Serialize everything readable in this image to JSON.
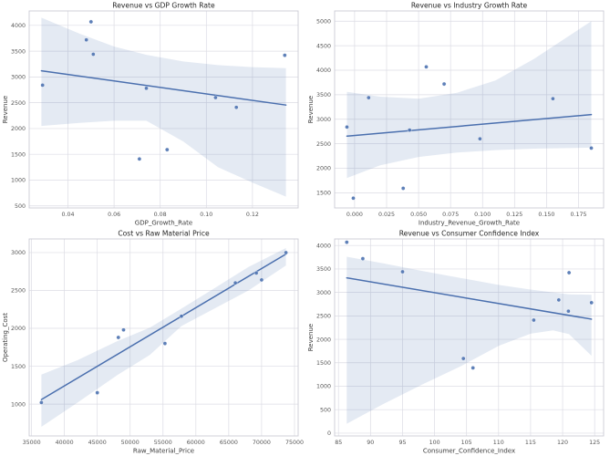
{
  "figure": {
    "background": "#ffffff"
  },
  "style": {
    "accent": "#4c72b0",
    "point_color": "#4c72b0",
    "line_color": "#4a6fae",
    "band_color": "rgba(76,114,176,0.15)",
    "grid_color": "#dcdce4",
    "spine_color": "#cbcbd4",
    "title_color": "#262626",
    "tick_color": "#555555",
    "axis_label_color": "#3c3c3c"
  },
  "chart_data": [
    {
      "type": "scatter",
      "title": "Revenue vs GDP Growth Rate",
      "xlabel": "GDP_Growth_Rate",
      "ylabel": "Revenue",
      "xlim": [
        0.0232,
        0.1398
      ],
      "ylim": [
        460,
        4280
      ],
      "xtick_labels": [
        "0.04",
        "0.06",
        "0.08",
        "0.10",
        "0.12"
      ],
      "ytick_labels": [
        "500",
        "1000",
        "1500",
        "2000",
        "2500",
        "3000",
        "3500",
        "4000"
      ],
      "grid": true,
      "legend": null,
      "points": [
        [
          0.029,
          2840
        ],
        [
          0.05,
          4070
        ],
        [
          0.048,
          3720
        ],
        [
          0.051,
          3440
        ],
        [
          0.074,
          2780
        ],
        [
          0.071,
          1410
        ],
        [
          0.083,
          1590
        ],
        [
          0.104,
          2600
        ],
        [
          0.113,
          2410
        ],
        [
          0.134,
          3420
        ]
      ],
      "regression_line": {
        "x1": 0.0285,
        "y1": 3120,
        "x2": 0.1345,
        "y2": 2455
      },
      "confidence_band": [
        [
          0.0285,
          2050,
          4150
        ],
        [
          0.045,
          2110,
          3840
        ],
        [
          0.06,
          2150,
          3590
        ],
        [
          0.074,
          2150,
          3430
        ],
        [
          0.09,
          1750,
          3300
        ],
        [
          0.105,
          1250,
          3230
        ],
        [
          0.12,
          950,
          3190
        ],
        [
          0.1345,
          680,
          3170
        ]
      ]
    },
    {
      "type": "scatter",
      "title": "Revenue vs Industry Growth Rate",
      "xlabel": "Industry_Revenue_Growth_Rate",
      "ylabel": "Revenue",
      "xlim": [
        -0.0156,
        0.1946
      ],
      "ylim": [
        1190,
        5210
      ],
      "xtick_labels": [
        "0.000",
        "0.025",
        "0.050",
        "0.075",
        "0.100",
        "0.125",
        "0.150",
        "0.175"
      ],
      "ytick_labels": [
        "1500",
        "2000",
        "2500",
        "3000",
        "3500",
        "4000",
        "4500",
        "5000"
      ],
      "grid": true,
      "legend": null,
      "points": [
        [
          -0.006,
          2840
        ],
        [
          -0.001,
          1390
        ],
        [
          0.011,
          3440
        ],
        [
          0.038,
          1590
        ],
        [
          0.043,
          2780
        ],
        [
          0.056,
          4070
        ],
        [
          0.07,
          3720
        ],
        [
          0.098,
          2600
        ],
        [
          0.155,
          3420
        ],
        [
          0.185,
          2410
        ]
      ],
      "regression_line": {
        "x1": -0.006,
        "y1": 2655,
        "x2": 0.185,
        "y2": 3095
      },
      "confidence_band": [
        [
          -0.006,
          1800,
          3560
        ],
        [
          0.02,
          2060,
          3460
        ],
        [
          0.05,
          2230,
          3420
        ],
        [
          0.08,
          2320,
          3540
        ],
        [
          0.11,
          2370,
          3790
        ],
        [
          0.14,
          2400,
          4230
        ],
        [
          0.185,
          2420,
          5000
        ]
      ]
    },
    {
      "type": "scatter",
      "title": "Cost vs Raw Material Price",
      "xlabel": "Raw_Material_Price",
      "ylabel": "Operating_Cost",
      "xlim": [
        34640,
        75560
      ],
      "ylim": [
        580,
        3180
      ],
      "xtick_labels": [
        "35000",
        "40000",
        "45000",
        "50000",
        "55000",
        "60000",
        "65000",
        "70000",
        "75000"
      ],
      "ytick_labels": [
        "1000",
        "1500",
        "2000",
        "2500",
        "3000"
      ],
      "grid": true,
      "legend": null,
      "points": [
        [
          36500,
          1020
        ],
        [
          45000,
          1150
        ],
        [
          48200,
          1880
        ],
        [
          49000,
          1980
        ],
        [
          55300,
          1800
        ],
        [
          57800,
          2160
        ],
        [
          66000,
          2600
        ],
        [
          69200,
          2730
        ],
        [
          70000,
          2640
        ],
        [
          73700,
          3000
        ]
      ],
      "regression_line": {
        "x1": 36500,
        "y1": 1060,
        "x2": 73700,
        "y2": 2980
      },
      "confidence_band": [
        [
          36500,
          700,
          1390
        ],
        [
          42000,
          1020,
          1580
        ],
        [
          48000,
          1380,
          1830
        ],
        [
          53000,
          1650,
          2010
        ],
        [
          57800,
          2030,
          2260
        ],
        [
          63000,
          2270,
          2540
        ],
        [
          68000,
          2500,
          2810
        ],
        [
          73700,
          2830,
          3060
        ]
      ]
    },
    {
      "type": "scatter",
      "title": "Revenue vs Consumer Confidence Index",
      "xlabel": "Consumer_Confidence_Index",
      "ylabel": "Revenue",
      "xlim": [
        84.4,
        126.4
      ],
      "ylim": [
        -60,
        4140
      ],
      "xtick_labels": [
        "85",
        "90",
        "95",
        "100",
        "105",
        "110",
        "115",
        "120",
        "125"
      ],
      "ytick_labels": [
        "0",
        "500",
        "1000",
        "1500",
        "2000",
        "2500",
        "3000",
        "3500",
        "4000"
      ],
      "grid": true,
      "legend": null,
      "points": [
        [
          86.3,
          4070
        ],
        [
          88.8,
          3720
        ],
        [
          95.0,
          3440
        ],
        [
          104.5,
          1590
        ],
        [
          106.0,
          1390
        ],
        [
          115.5,
          2410
        ],
        [
          119.4,
          2840
        ],
        [
          121.0,
          3420
        ],
        [
          120.9,
          2600
        ],
        [
          124.5,
          2780
        ]
      ],
      "regression_line": {
        "x1": 86.3,
        "y1": 3310,
        "x2": 124.5,
        "y2": 2430
      },
      "confidence_band": [
        [
          86.3,
          200,
          3760
        ],
        [
          92,
          620,
          3620
        ],
        [
          98,
          1030,
          3460
        ],
        [
          104,
          1420,
          3310
        ],
        [
          110,
          1860,
          3160
        ],
        [
          115,
          2120,
          3060
        ],
        [
          118.5,
          2190,
          3000
        ],
        [
          121,
          2110,
          2960
        ],
        [
          124.5,
          1650,
          2950
        ]
      ]
    }
  ]
}
